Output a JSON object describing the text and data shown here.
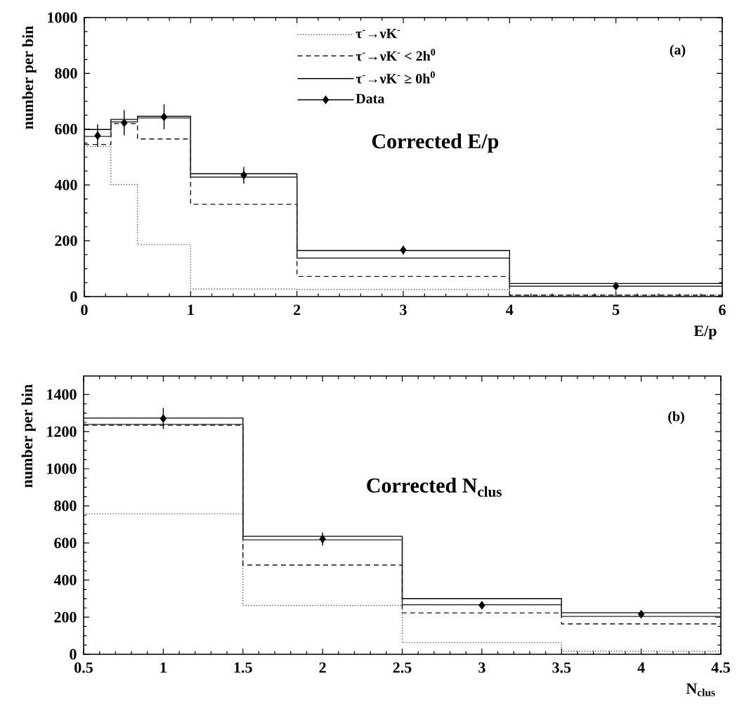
{
  "chart_data": [
    {
      "type": "histogram",
      "xlabel": "E/p",
      "ylabel": "number per bin",
      "annotations": [
        "(a)",
        "Corrected E/p"
      ],
      "legend": "top",
      "bins": [
        0,
        0.25,
        0.5,
        1,
        2,
        4,
        6
      ],
      "series": [
        {
          "name": "τ$^{-}$→νK$^{-}$",
          "line_style": "dotted",
          "color": "#444444",
          "values": [
            538,
            401,
            186,
            27,
            25,
            5
          ]
        },
        {
          "name": "τ$^{-}$→νK$^{-}$ < 2h$^{0}$",
          "line_style": "dashed",
          "color": "#151515",
          "values": [
            545,
            620,
            565,
            331,
            72,
            5
          ]
        },
        {
          "name": "τ$^{-}$→νK$^{-}$ ≥ 0h$^{0}$",
          "line_style": "solid",
          "color": "#000000",
          "values": [
            599,
            635,
            646,
            440,
            165,
            47
          ]
        },
        {
          "line_style": "solid",
          "color": "#2a2a2a",
          "values": [
            574,
            626,
            640,
            428,
            138,
            37
          ]
        },
        {
          "name": "Data",
          "type": "scatter",
          "marker": "diamond",
          "color": "#000000",
          "x": [
            0.125,
            0.375,
            0.75,
            1.5,
            3,
            5
          ],
          "values": [
            577,
            623,
            644,
            435,
            167,
            37
          ],
          "errors": [
            40,
            45,
            45,
            30,
            15,
            10
          ]
        }
      ],
      "xlim": [
        0,
        6
      ],
      "ylim": [
        0,
        1000
      ],
      "xticks": [
        0,
        1,
        2,
        3,
        4,
        5,
        6
      ],
      "yticks": [
        0,
        200,
        400,
        600,
        800,
        1000
      ]
    },
    {
      "type": "histogram",
      "xlabel": "N$_{clus}$",
      "ylabel": "number per bin",
      "annotations": [
        "(b)",
        "Corrected N$_{clus}$"
      ],
      "bins": [
        0.5,
        1.5,
        2.5,
        3.5,
        4.5
      ],
      "series": [
        {
          "line_style": "dotted",
          "color": "#444444",
          "values": [
            757,
            263,
            63,
            17
          ]
        },
        {
          "line_style": "dashed",
          "color": "#151515",
          "values": [
            1235,
            481,
            223,
            164
          ]
        },
        {
          "line_style": "solid",
          "color": "#000000",
          "values": [
            1273,
            636,
            300,
            224
          ]
        },
        {
          "line_style": "solid",
          "color": "#2a2a2a",
          "values": [
            1239,
            617,
            267,
            204
          ]
        },
        {
          "type": "scatter",
          "marker": "diamond",
          "color": "#000000",
          "x": [
            1,
            2,
            3,
            4
          ],
          "values": [
            1271,
            621,
            264,
            216
          ],
          "errors": [
            57,
            35,
            20,
            20
          ]
        }
      ],
      "xlim": [
        0.5,
        4.5
      ],
      "ylim": [
        0,
        1500
      ],
      "xticks": [
        0.5,
        1,
        1.5,
        2,
        2.5,
        3,
        3.5,
        4,
        4.5
      ],
      "yticks": [
        0,
        200,
        400,
        600,
        800,
        1000,
        1200,
        1400
      ]
    }
  ]
}
